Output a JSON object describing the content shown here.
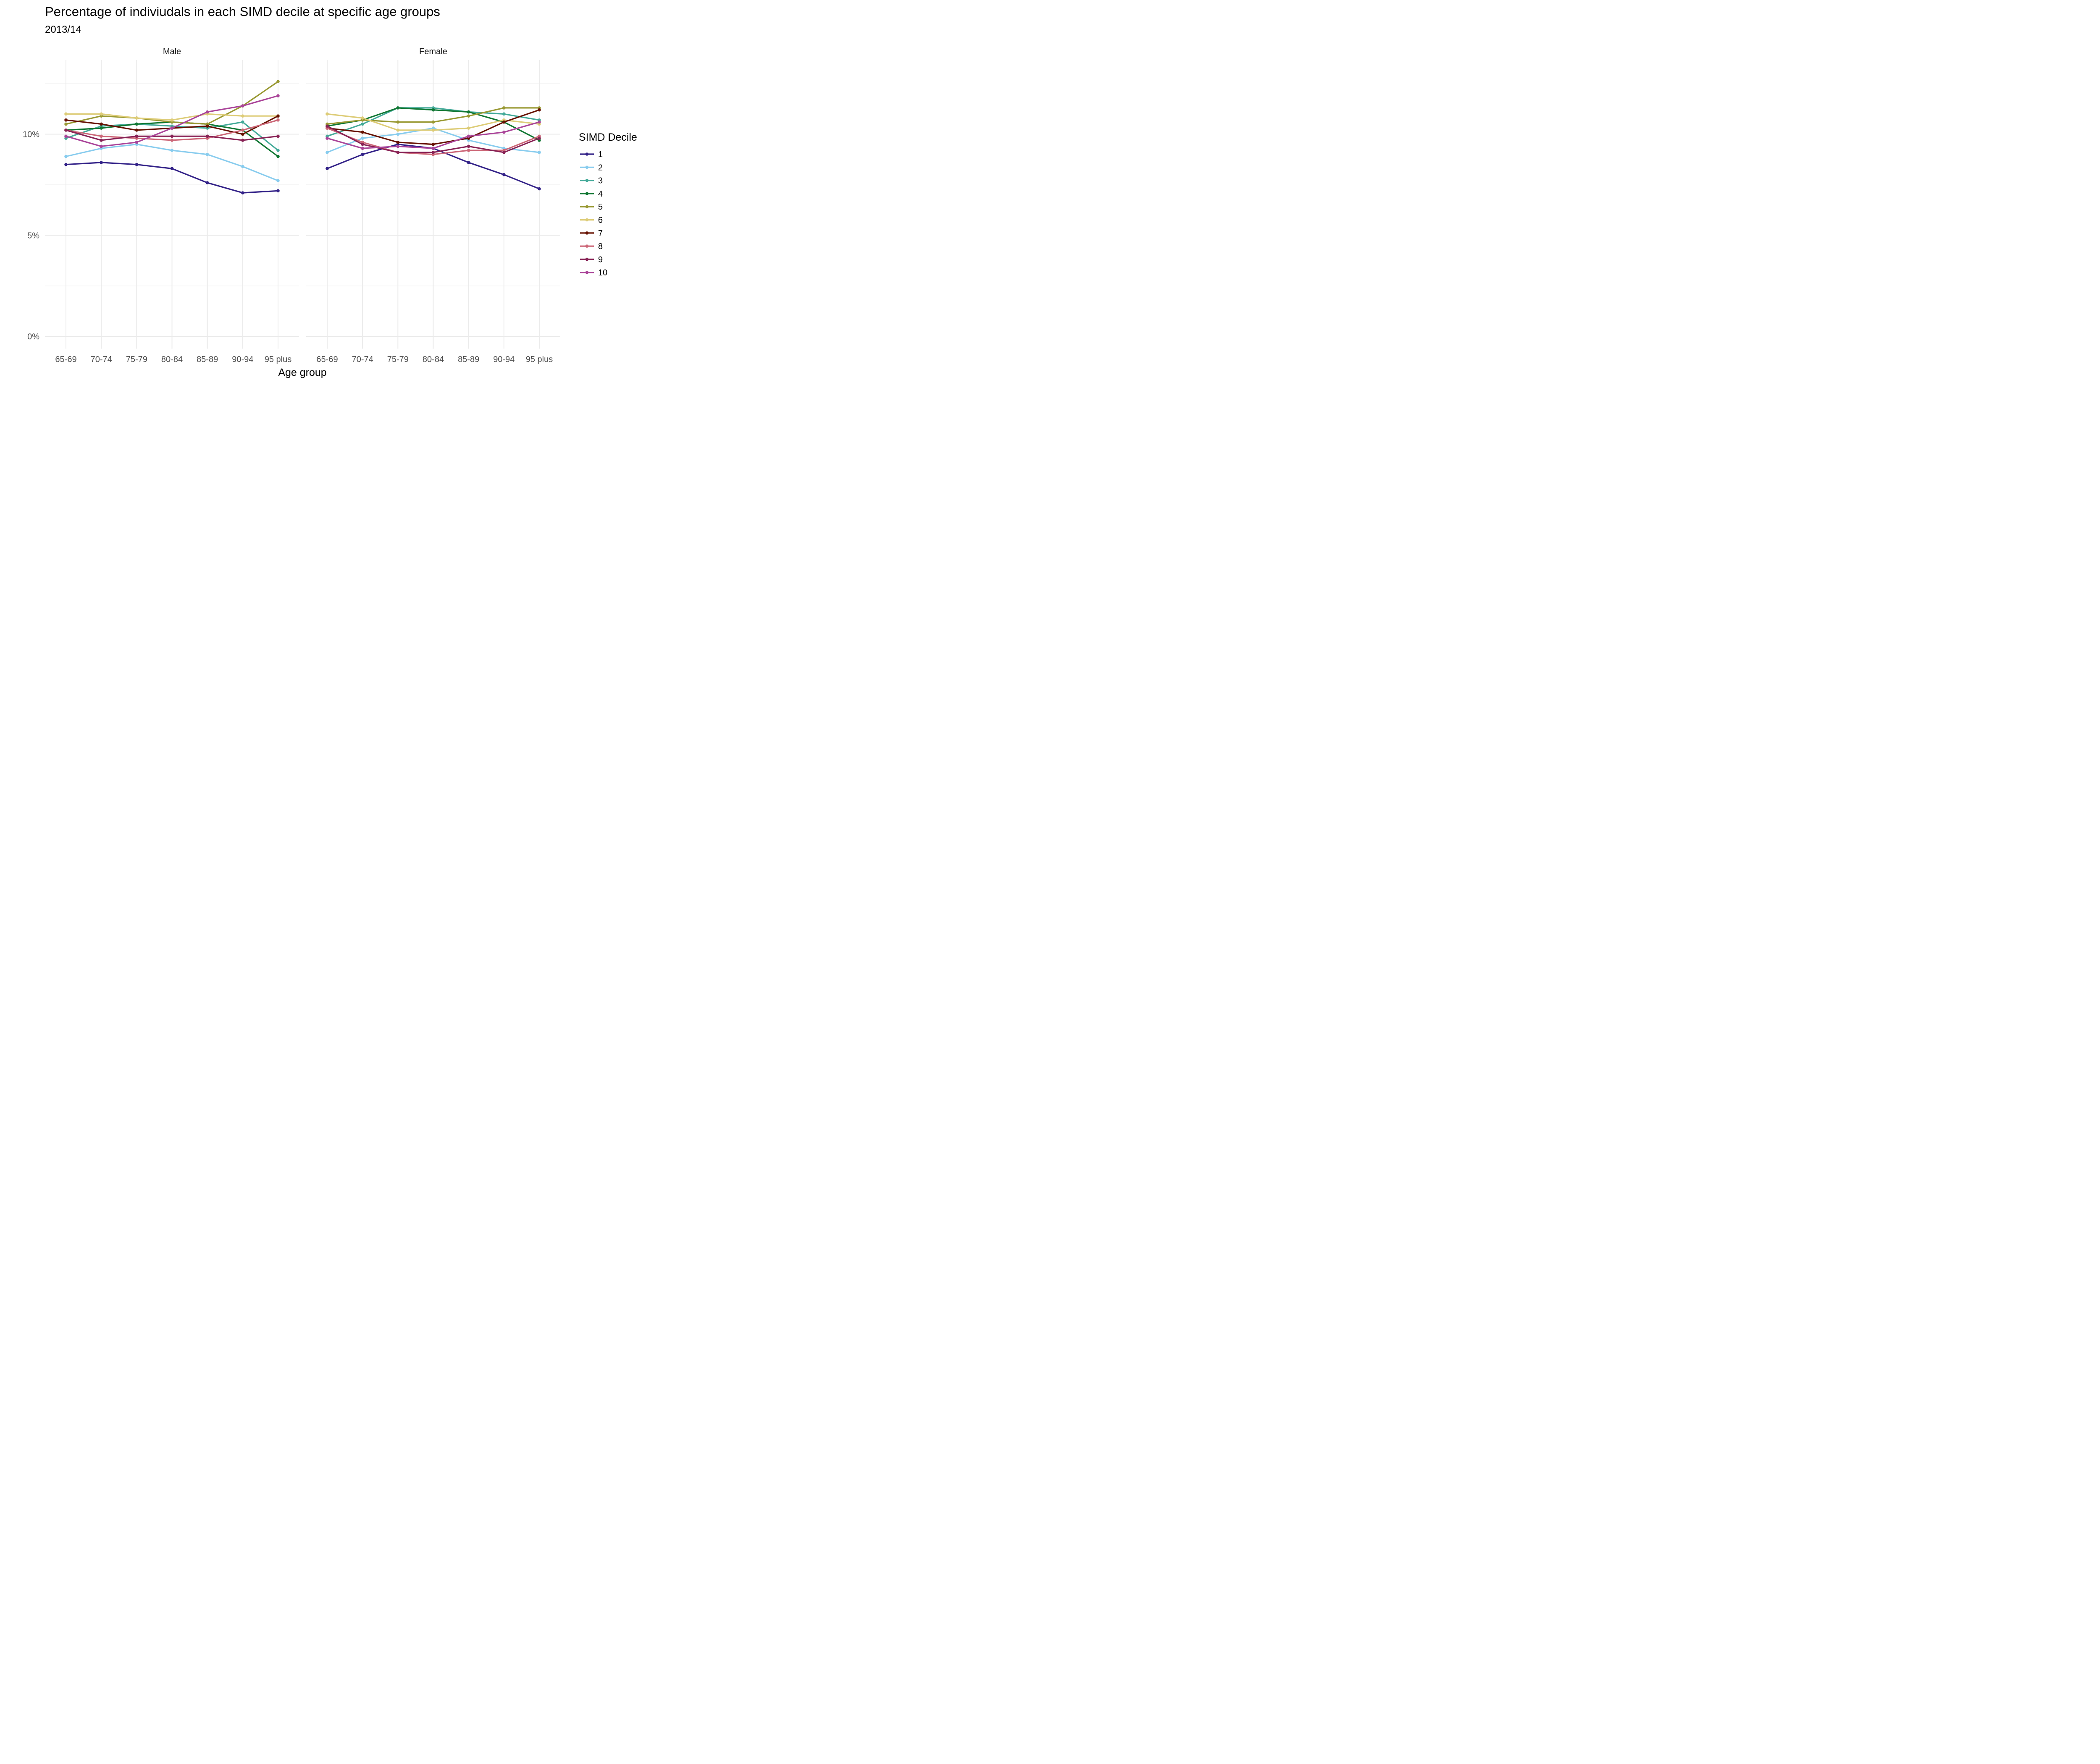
{
  "chart_data": {
    "type": "line",
    "title": "Percentage of indiviudals in each SIMD decile at specific age groups",
    "subtitle": "2013/14",
    "xlabel": "Age group",
    "ylabel": "",
    "ylim": [
      0,
      12.8
    ],
    "y_ticks": [
      0,
      5,
      10
    ],
    "y_tick_labels": [
      "0%",
      "5%",
      "10%"
    ],
    "y_minor_gridlines": [
      2.5,
      7.5,
      12.5
    ],
    "grid": true,
    "legend_title": "SIMD Decile",
    "legend_position": "right",
    "categories": [
      "65-69",
      "70-74",
      "75-79",
      "80-84",
      "85-89",
      "90-94",
      "95 plus"
    ],
    "panels": [
      {
        "name": "Male",
        "series": [
          {
            "name": "1",
            "color": "#332288",
            "values": [
              8.5,
              8.6,
              8.5,
              8.3,
              7.6,
              7.1,
              7.2
            ]
          },
          {
            "name": "2",
            "color": "#88CCEE",
            "values": [
              8.9,
              9.3,
              9.5,
              9.2,
              9.0,
              8.4,
              7.7
            ]
          },
          {
            "name": "3",
            "color": "#44AA99",
            "values": [
              9.8,
              10.4,
              10.5,
              10.4,
              10.3,
              10.6,
              9.2
            ]
          },
          {
            "name": "4",
            "color": "#117733",
            "values": [
              10.2,
              10.3,
              10.5,
              10.6,
              10.5,
              10.2,
              8.9
            ]
          },
          {
            "name": "5",
            "color": "#999933",
            "values": [
              10.5,
              10.9,
              10.8,
              10.6,
              10.5,
              11.4,
              12.6
            ]
          },
          {
            "name": "6",
            "color": "#DDCC77",
            "values": [
              11.0,
              11.0,
              10.8,
              10.7,
              11.0,
              10.9,
              10.9
            ]
          },
          {
            "name": "7",
            "color": "#661100",
            "values": [
              10.7,
              10.5,
              10.2,
              10.3,
              10.4,
              10.0,
              10.9
            ]
          },
          {
            "name": "8",
            "color": "#CC6677",
            "values": [
              10.2,
              9.9,
              9.8,
              9.7,
              9.8,
              10.2,
              10.7
            ]
          },
          {
            "name": "9",
            "color": "#882255",
            "values": [
              10.2,
              9.7,
              9.9,
              9.9,
              9.9,
              9.7,
              9.9
            ]
          },
          {
            "name": "10",
            "color": "#AA4499",
            "values": [
              9.9,
              9.4,
              9.6,
              10.3,
              11.1,
              11.4,
              11.9
            ]
          }
        ]
      },
      {
        "name": "Female",
        "series": [
          {
            "name": "1",
            "color": "#332288",
            "values": [
              8.3,
              9.0,
              9.5,
              9.3,
              8.6,
              8.0,
              7.3
            ]
          },
          {
            "name": "2",
            "color": "#88CCEE",
            "values": [
              9.1,
              9.8,
              10.0,
              10.3,
              9.7,
              9.3,
              9.1
            ]
          },
          {
            "name": "3",
            "color": "#44AA99",
            "values": [
              9.9,
              10.5,
              11.3,
              11.3,
              11.1,
              11.0,
              10.7
            ]
          },
          {
            "name": "4",
            "color": "#117733",
            "values": [
              10.4,
              10.7,
              11.3,
              11.2,
              11.1,
              10.6,
              9.7
            ]
          },
          {
            "name": "5",
            "color": "#999933",
            "values": [
              10.5,
              10.7,
              10.6,
              10.6,
              10.9,
              11.3,
              11.3
            ]
          },
          {
            "name": "6",
            "color": "#DDCC77",
            "values": [
              11.0,
              10.8,
              10.2,
              10.2,
              10.3,
              10.7,
              10.5
            ]
          },
          {
            "name": "7",
            "color": "#661100",
            "values": [
              10.3,
              10.1,
              9.6,
              9.5,
              9.8,
              10.6,
              11.2
            ]
          },
          {
            "name": "8",
            "color": "#CC6677",
            "values": [
              10.3,
              9.6,
              9.1,
              9.0,
              9.2,
              9.2,
              9.9
            ]
          },
          {
            "name": "9",
            "color": "#882255",
            "values": [
              10.4,
              9.5,
              9.1,
              9.1,
              9.4,
              9.1,
              9.8
            ]
          },
          {
            "name": "10",
            "color": "#AA4499",
            "values": [
              9.8,
              9.3,
              9.4,
              9.3,
              9.9,
              10.1,
              10.6
            ]
          }
        ]
      }
    ]
  }
}
